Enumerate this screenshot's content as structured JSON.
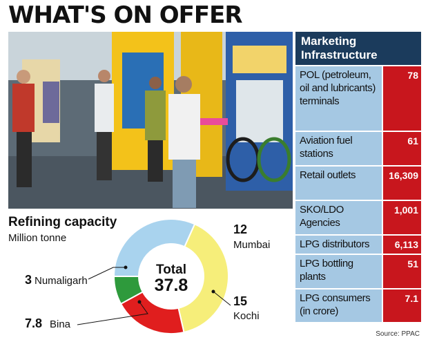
{
  "headline": "WHAT'S ON OFFER",
  "infrastructure": {
    "title": "Marketing Infrastructure",
    "rows": [
      {
        "label": "POL (petroleum, oil and lubricants) terminals",
        "value": "78"
      },
      {
        "label": "Aviation fuel stations",
        "value": "61"
      },
      {
        "label": "Retail outlets",
        "value": "16,309"
      },
      {
        "label": "SKO/LDO Agencies",
        "value": "1,001"
      },
      {
        "label": "LPG distributors",
        "value": "6,113"
      },
      {
        "label": "LPG bottling plants",
        "value": "51"
      },
      {
        "label": "LPG consumers (in crore)",
        "value": "7.1"
      }
    ],
    "source": "Source: PPAC"
  },
  "chart_data": {
    "type": "pie",
    "title": "Refining capacity",
    "subtitle": "Million tonne",
    "center_label": "Total",
    "total": "37.8",
    "slices": [
      {
        "name": "Mumbai",
        "value": 12,
        "value_label": "12",
        "color": "#a9d3ee"
      },
      {
        "name": "Kochi",
        "value": 15,
        "value_label": "15",
        "color": "#f6ee7a"
      },
      {
        "name": "Bina",
        "value": 7.8,
        "value_label": "7.8",
        "color": "#e01e1e"
      },
      {
        "name": "Numaligarh",
        "value": 3,
        "value_label": "3",
        "color": "#2e9a3c"
      }
    ]
  }
}
